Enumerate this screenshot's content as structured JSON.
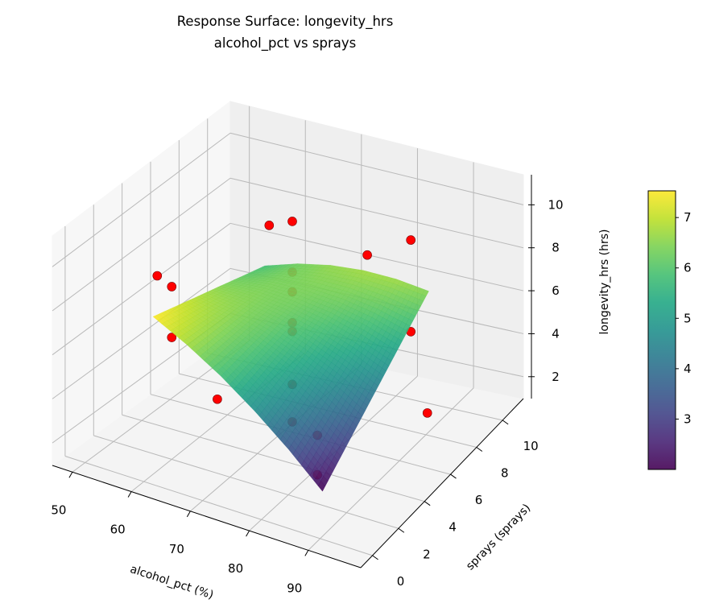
{
  "chart_data": {
    "type": "surface",
    "title": "Response Surface: longevity_hrs",
    "subtitle": "alcohol_pct vs sprays",
    "xlabel": "alcohol_pct (%)",
    "ylabel": "sprays (sprays)",
    "zlabel": "longevity_hrs (hrs)",
    "xlim": [
      46.6,
      98.9
    ],
    "ylim": [
      -0.9,
      11.6
    ],
    "zlim": [
      0.98,
      11.4
    ],
    "xticks": [
      50,
      60,
      70,
      80,
      90
    ],
    "yticks": [
      0,
      2,
      4,
      6,
      8,
      10
    ],
    "zticks": [
      2,
      4,
      6,
      8,
      10
    ],
    "grid": true,
    "colormap": "viridis",
    "colorbar": {
      "range": [
        2.0,
        7.53
      ],
      "ticks": [
        3,
        4,
        5,
        6,
        7
      ]
    },
    "surface": {
      "x": [
        58,
        63.8,
        69.6,
        75.4,
        81.2,
        87
      ],
      "y": [
        1.5,
        3.1,
        4.7,
        6.3,
        7.9,
        9.5
      ],
      "z": [
        [
          7.53,
          6.74,
          5.8,
          4.69,
          3.43,
          2.0
        ],
        [
          7.18,
          6.64,
          5.95,
          5.09,
          4.08,
          2.9
        ],
        [
          6.83,
          6.54,
          6.1,
          5.49,
          4.73,
          3.8
        ],
        [
          6.49,
          6.45,
          6.25,
          5.9,
          5.38,
          4.7
        ],
        [
          6.14,
          6.35,
          6.4,
          6.3,
          6.03,
          5.6
        ],
        [
          5.8,
          6.26,
          6.56,
          6.7,
          6.68,
          6.5
        ]
      ]
    },
    "scatter": {
      "color": "#ff0000",
      "points": [
        {
          "x": 72.5,
          "y": 5.5,
          "z": 10.9
        },
        {
          "x": 72.5,
          "y": 5.5,
          "z": 8.6
        },
        {
          "x": 72.5,
          "y": 5.5,
          "z": 7.7
        },
        {
          "x": 72.5,
          "y": 5.5,
          "z": 6.3
        },
        {
          "x": 72.5,
          "y": 5.5,
          "z": 5.9
        },
        {
          "x": 72.5,
          "y": 5.5,
          "z": 3.5
        },
        {
          "x": 72.5,
          "y": 5.5,
          "z": 1.8
        },
        {
          "x": 60,
          "y": 9,
          "z": 8.0
        },
        {
          "x": 85,
          "y": 9,
          "z": 9.0
        },
        {
          "x": 85,
          "y": 9,
          "z": 4.8
        },
        {
          "x": 72.5,
          "y": 11,
          "z": 6.4
        },
        {
          "x": 85,
          "y": 2,
          "z": 2.3
        },
        {
          "x": 85,
          "y": 2,
          "z": 4.1
        },
        {
          "x": 96,
          "y": 5.5,
          "z": 3.9
        },
        {
          "x": 72.5,
          "y": 0,
          "z": 5.8
        },
        {
          "x": 60,
          "y": 2,
          "z": 6.5
        },
        {
          "x": 60,
          "y": 2,
          "z": 8.8
        },
        {
          "x": 49,
          "y": 5.5,
          "z": 6.7
        }
      ]
    }
  }
}
